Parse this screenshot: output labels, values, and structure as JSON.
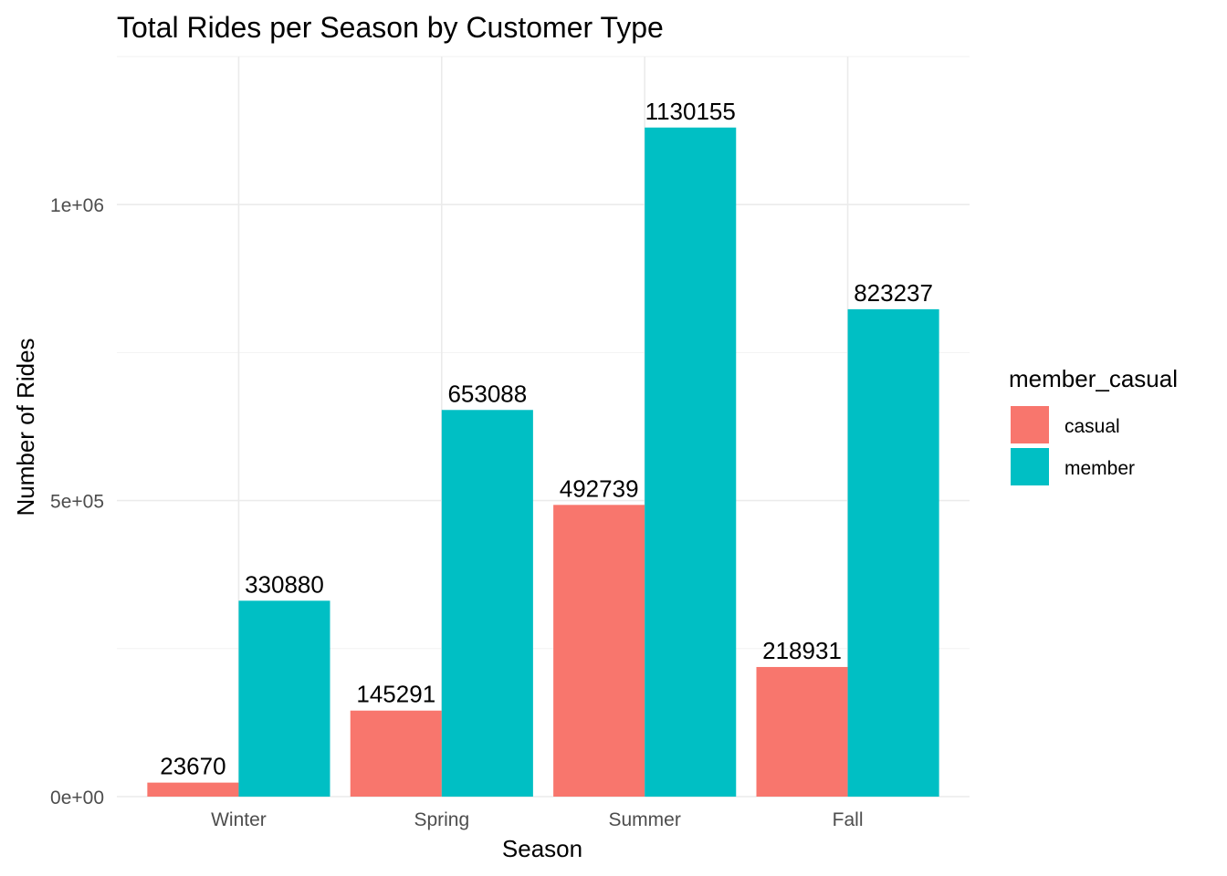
{
  "chart_data": {
    "type": "bar",
    "title": "Total Rides per Season by Customer Type",
    "xlabel": "Season",
    "ylabel": "Number of Rides",
    "categories": [
      "Winter",
      "Spring",
      "Summer",
      "Fall"
    ],
    "series": [
      {
        "name": "casual",
        "color": "#F8766D",
        "values": [
          23670,
          145291,
          492739,
          218931
        ]
      },
      {
        "name": "member",
        "color": "#00BFC4",
        "values": [
          330880,
          653088,
          1130155,
          823237
        ]
      }
    ],
    "ylim": [
      0,
      1250000
    ],
    "yticks": [
      0,
      500000,
      1000000
    ],
    "ytick_labels": [
      "0e+00",
      "5e+05",
      "1e+06"
    ],
    "grid": true,
    "legend": {
      "title": "member_casual",
      "position": "right"
    },
    "data_labels": true
  }
}
